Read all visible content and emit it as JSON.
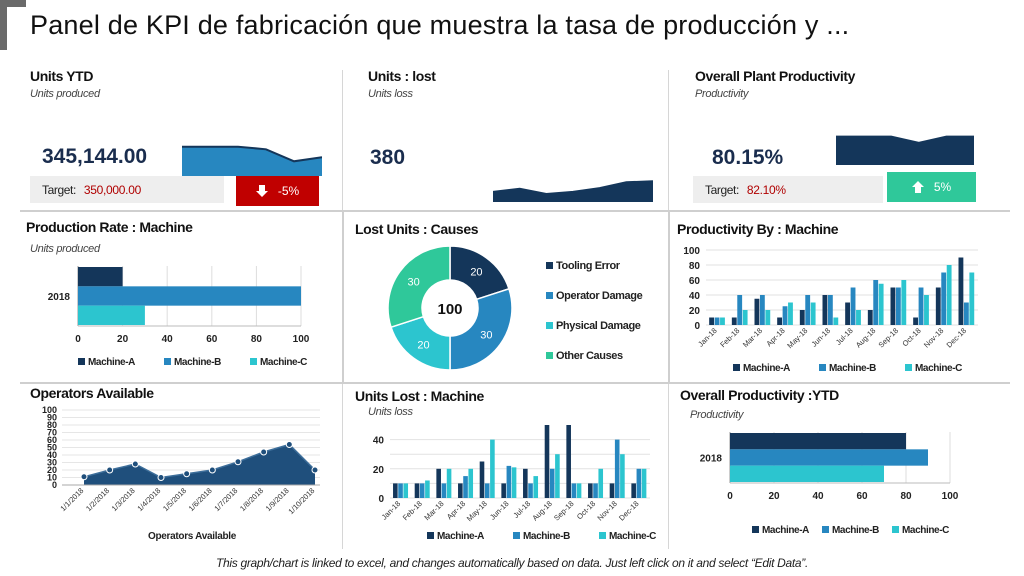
{
  "title": "Panel de KPI de fabricación que muestra la tasa de producción y ...",
  "footer": "This graph/chart is linked to excel, and changes automatically based on data. Just left click on it and select “Edit Data”.",
  "colors": {
    "navy": "#14365a",
    "blue": "#2787c0",
    "teal": "#2cc5cf",
    "green": "#2fc89a",
    "red": "#c00000",
    "gray": "#eeeeee"
  },
  "kpis": {
    "units_ytd": {
      "title": "Units YTD",
      "subtitle": "Units produced",
      "value": "345,144.00",
      "target_label": "Target:",
      "target_value": "350,000.00",
      "change": "-5%",
      "change_icon": "arrow-down-icon"
    },
    "units_lost": {
      "title": "Units : lost",
      "subtitle": "Units loss",
      "value": "380"
    },
    "plant_productivity": {
      "title": "Overall Plant Productivity",
      "subtitle": "Productivity",
      "value": "80.15%",
      "target_label": "Target:",
      "target_value": "82.10%",
      "change": "5%",
      "change_icon": "arrow-up-icon"
    }
  },
  "chart_data": [
    {
      "id": "ytd_spark",
      "type": "area",
      "values": [
        4.4,
        4.4,
        4.4,
        4.0,
        2.2,
        2.8
      ],
      "ylim": [
        0,
        6
      ]
    },
    {
      "id": "lost_spark",
      "type": "area",
      "values": [
        1.9,
        2.5,
        1.5,
        1.9,
        2.6,
        3.7,
        3.9
      ],
      "ylim": [
        0,
        6
      ]
    },
    {
      "id": "prod_spark",
      "type": "area",
      "values": [
        4.6,
        4.6,
        4.6,
        3.6,
        4.6,
        4.6
      ],
      "ylim": [
        0,
        6
      ]
    },
    {
      "id": "production_rate",
      "type": "bar",
      "orientation": "horizontal",
      "title": "Production Rate : Machine",
      "subtitle": "Units produced",
      "categories": [
        "2018"
      ],
      "series": [
        {
          "name": "Machine-A",
          "values": [
            20
          ]
        },
        {
          "name": "Machine-B",
          "values": [
            100
          ]
        },
        {
          "name": "Machine-C",
          "values": [
            30
          ]
        }
      ],
      "xlim": [
        0,
        100
      ],
      "xticks": [
        0,
        20,
        40,
        60,
        80,
        100
      ],
      "legend": "bottom"
    },
    {
      "id": "lost_causes",
      "type": "pie",
      "donut": true,
      "title": "Lost Units : Causes",
      "center_label": "100",
      "categories": [
        "Tooling Error",
        "Operator Damage",
        "Physical Damage",
        "Other Causes"
      ],
      "values": [
        20,
        30,
        20,
        30
      ],
      "legend": "right"
    },
    {
      "id": "productivity_machine",
      "type": "bar",
      "title": "Productivity By : Machine",
      "categories": [
        "Jan-18",
        "Feb-18",
        "Mar-18",
        "Apr-18",
        "May-18",
        "Jun-18",
        "Jul-18",
        "Aug-18",
        "Sep-18",
        "Oct-18",
        "Nov-18",
        "Dec-18"
      ],
      "series": [
        {
          "name": "Machine-A",
          "values": [
            10,
            10,
            35,
            10,
            20,
            40,
            30,
            20,
            50,
            10,
            50,
            90
          ]
        },
        {
          "name": "Machine-B",
          "values": [
            10,
            40,
            40,
            25,
            40,
            40,
            50,
            60,
            50,
            50,
            70,
            30
          ]
        },
        {
          "name": "Machine-C",
          "values": [
            10,
            20,
            20,
            30,
            30,
            10,
            20,
            55,
            60,
            40,
            80,
            70
          ]
        }
      ],
      "ylim": [
        0,
        100
      ],
      "yticks": [
        0,
        20,
        40,
        60,
        80,
        100
      ],
      "legend": "bottom"
    },
    {
      "id": "operators",
      "type": "area",
      "title": "Operators Available",
      "xlabel": "Operators Available",
      "x": [
        "1/1/2018",
        "1/2/2018",
        "1/3/2018",
        "1/4/2018",
        "1/5/2018",
        "1/6/2018",
        "1/7/2018",
        "1/8/2018",
        "1/9/2018",
        "1/10/2018"
      ],
      "values": [
        11,
        20,
        28,
        10,
        15,
        20,
        31,
        44,
        54,
        20
      ],
      "ylim": [
        0,
        100
      ],
      "yticks": [
        0,
        10,
        20,
        30,
        40,
        50,
        60,
        70,
        80,
        90,
        100
      ]
    },
    {
      "id": "units_lost_machine",
      "type": "bar",
      "title": "Units Lost : Machine",
      "subtitle": "Units loss",
      "categories": [
        "Jan-18",
        "Feb-18",
        "Mar-18",
        "Apr-18",
        "May-18",
        "Jun-18",
        "Jul-18",
        "Aug-18",
        "Sep-18",
        "Oct-18",
        "Nov-18",
        "Dec-18"
      ],
      "series": [
        {
          "name": "Machine-A",
          "values": [
            10,
            10,
            20,
            10,
            25,
            10,
            20,
            50,
            50,
            10,
            10,
            10
          ]
        },
        {
          "name": "Machine-B",
          "values": [
            10,
            10,
            10,
            15,
            10,
            22,
            10,
            20,
            10,
            10,
            40,
            20
          ]
        },
        {
          "name": "Machine-C",
          "values": [
            10,
            12,
            20,
            20,
            40,
            21,
            15,
            30,
            10,
            20,
            30,
            20
          ]
        }
      ],
      "ylim": [
        0,
        50
      ],
      "yticks": [
        0,
        10,
        20,
        30,
        40
      ],
      "ytick_labels": [
        "0",
        "",
        "20",
        "",
        "40"
      ],
      "legend": "bottom"
    },
    {
      "id": "overall_productivity_ytd",
      "type": "bar",
      "orientation": "horizontal",
      "title": "Overall Productivity :YTD",
      "subtitle": "Productivity",
      "categories": [
        "2018"
      ],
      "series": [
        {
          "name": "Machine-A",
          "values": [
            80
          ]
        },
        {
          "name": "Machine-B",
          "values": [
            90
          ]
        },
        {
          "name": "Machine-C",
          "values": [
            70
          ]
        }
      ],
      "xlim": [
        0,
        100
      ],
      "xticks": [
        0,
        20,
        40,
        60,
        80,
        100
      ],
      "legend": "bottom"
    }
  ]
}
